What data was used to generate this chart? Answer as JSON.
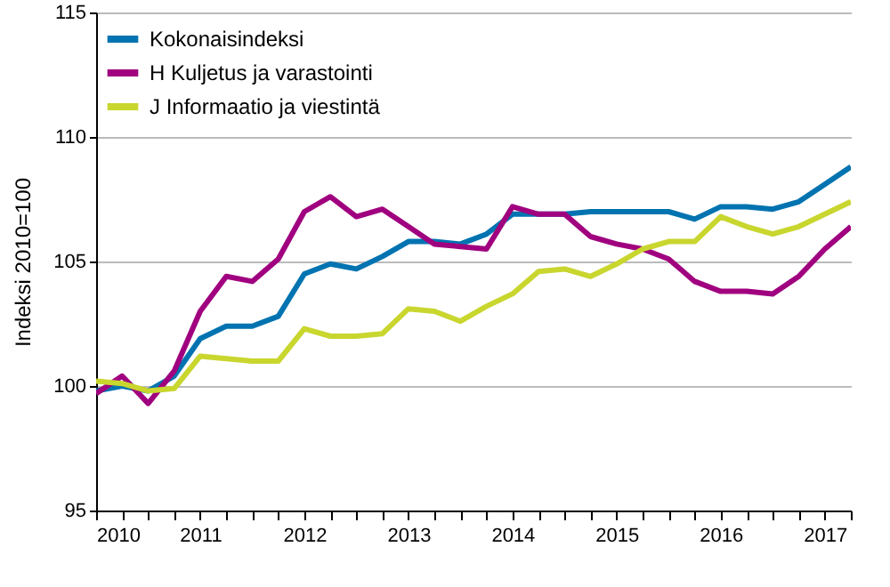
{
  "chart_data": {
    "type": "line",
    "ylabel": "Indeksi 2010=100",
    "x": [
      2010,
      2010.25,
      2010.5,
      2010.75,
      2011,
      2011.25,
      2011.5,
      2011.75,
      2012,
      2012.25,
      2012.5,
      2012.75,
      2013,
      2013.25,
      2013.5,
      2013.75,
      2014,
      2014.25,
      2014.5,
      2014.75,
      2015,
      2015.25,
      2015.5,
      2015.75,
      2016,
      2016.25,
      2016.5,
      2016.75,
      2017,
      2017.25
    ],
    "series": [
      {
        "name": "Kokonaisindeksi",
        "color": "#0073b0",
        "values": [
          99.8,
          100.0,
          99.8,
          100.4,
          101.9,
          102.4,
          102.4,
          102.8,
          104.5,
          104.9,
          104.7,
          105.2,
          105.8,
          105.8,
          105.7,
          106.1,
          106.9,
          106.9,
          106.9,
          107.0,
          107.0,
          107.0,
          107.0,
          106.7,
          107.2,
          107.2,
          107.1,
          107.4,
          108.1,
          108.8
        ]
      },
      {
        "name": "H Kuljetus ja varastointi",
        "color": "#a0007f",
        "values": [
          99.7,
          100.4,
          99.3,
          100.6,
          103.0,
          104.4,
          104.2,
          105.1,
          107.0,
          107.6,
          106.8,
          107.1,
          106.4,
          105.7,
          105.6,
          105.5,
          107.2,
          106.9,
          106.9,
          106.0,
          105.7,
          105.5,
          105.1,
          104.2,
          103.8,
          103.8,
          103.7,
          104.4,
          105.5,
          106.4
        ]
      },
      {
        "name": "J Informaatio ja viestintä",
        "color": "#c8d62e",
        "values": [
          100.2,
          100.1,
          99.8,
          99.9,
          101.2,
          101.1,
          101.0,
          101.0,
          102.3,
          102.0,
          102.0,
          102.1,
          103.1,
          103.0,
          102.6,
          103.2,
          103.7,
          104.6,
          104.7,
          104.4,
          104.9,
          105.5,
          105.8,
          105.8,
          106.8,
          106.4,
          106.1,
          106.4,
          106.9,
          107.4
        ]
      }
    ],
    "xlim": [
      2010,
      2017.25
    ],
    "xticks": [
      2010,
      {
        "value": 2010.25,
        "label": null
      },
      {
        "value": 2010.5,
        "label": null
      },
      {
        "value": 2010.75,
        "label": null
      },
      2011,
      {
        "value": 2011.25,
        "label": null
      },
      {
        "value": 2011.5,
        "label": null
      },
      {
        "value": 2011.75,
        "label": null
      },
      2012,
      {
        "value": 2012.25,
        "label": null
      },
      {
        "value": 2012.5,
        "label": null
      },
      {
        "value": 2012.75,
        "label": null
      },
      2013,
      {
        "value": 2013.25,
        "label": null
      },
      {
        "value": 2013.5,
        "label": null
      },
      {
        "value": 2013.75,
        "label": null
      },
      2014,
      {
        "value": 2014.25,
        "label": null
      },
      {
        "value": 2014.5,
        "label": null
      },
      {
        "value": 2014.75,
        "label": null
      },
      2015,
      {
        "value": 2015.25,
        "label": null
      },
      {
        "value": 2015.5,
        "label": null
      },
      {
        "value": 2015.75,
        "label": null
      },
      2016,
      {
        "value": 2016.25,
        "label": null
      },
      {
        "value": 2016.5,
        "label": null
      },
      {
        "value": 2016.75,
        "label": null
      },
      2017,
      {
        "value": 2017.25,
        "label": null
      }
    ],
    "ylim": [
      95,
      115
    ],
    "yticks": [
      95,
      100,
      105,
      110,
      115
    ],
    "grid": "y",
    "legend": "top left",
    "line_style": "solid",
    "marker": "none"
  }
}
